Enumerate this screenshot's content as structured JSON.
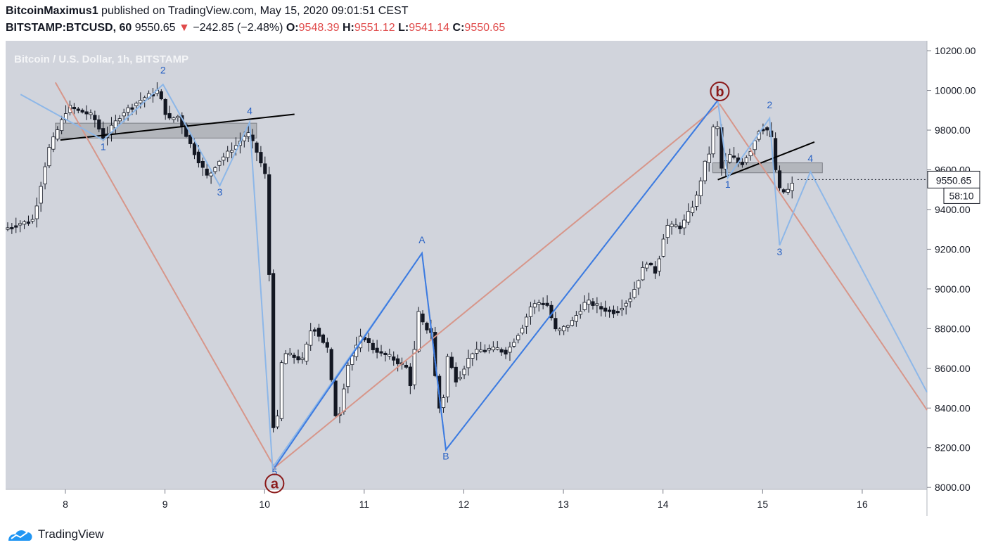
{
  "header": {
    "author": "BitcoinMaximus1",
    "published_text": " published on TradingView.com, May 15, 2020 09:01:51 CEST",
    "symbol": "BITSTAMP:BTCUSD, 60",
    "last": "9550.65",
    "change_arrow": "▼",
    "change": "−242.85 (−2.48%)",
    "open_label": "O:",
    "open": "9548.39",
    "high_label": "H:",
    "high": "9551.12",
    "low_label": "L:",
    "low": "9541.14",
    "close_label": "C:",
    "close": "9550.65"
  },
  "chart_title": "Bitcoin / U.S. Dollar, 1h, BITSTAMP",
  "price_badge": "9550.65",
  "countdown_badge": "58:10",
  "footer_brand": "TradingView",
  "colors": {
    "background": "#d1d4dc",
    "axis_bg": "#ffffff",
    "up_candle": "#ffffff",
    "down_candle": "#131722",
    "blue_wave": "#3d7be0",
    "light_blue_wave": "#8db7e8",
    "salmon_wave": "#d7968a",
    "wave_circle": "#8b1a1a",
    "label_blue": "#2962c4"
  },
  "chart_data": {
    "type": "candlestick",
    "title": "Bitcoin / U.S. Dollar, 1h, BITSTAMP",
    "x_ticks": [
      "8",
      "9",
      "10",
      "11",
      "12",
      "13",
      "14",
      "15",
      "16"
    ],
    "y_ticks": [
      "10200.00",
      "10000.00",
      "9800.00",
      "9600.00",
      "9400.00",
      "9200.00",
      "9000.00",
      "8800.00",
      "8600.00",
      "8400.00",
      "8200.00",
      "8000.00"
    ],
    "ylim": [
      7990,
      10250
    ],
    "xlim": [
      7.4,
      16.65
    ],
    "last_price": 9550.65,
    "path": [
      [
        7.4,
        9300
      ],
      [
        7.7,
        9350
      ],
      [
        7.85,
        9700
      ],
      [
        8.05,
        9920
      ],
      [
        8.3,
        9870
      ],
      [
        8.4,
        9760
      ],
      [
        8.6,
        9890
      ],
      [
        8.8,
        9960
      ],
      [
        8.95,
        10000
      ],
      [
        9.05,
        9850
      ],
      [
        9.15,
        9870
      ],
      [
        9.3,
        9700
      ],
      [
        9.45,
        9560
      ],
      [
        9.55,
        9640
      ],
      [
        9.75,
        9730
      ],
      [
        9.85,
        9790
      ],
      [
        9.95,
        9680
      ],
      [
        10.05,
        9540
      ],
      [
        10.08,
        8700
      ],
      [
        10.12,
        8150
      ],
      [
        10.2,
        8680
      ],
      [
        10.4,
        8640
      ],
      [
        10.5,
        8820
      ],
      [
        10.65,
        8700
      ],
      [
        10.75,
        8300
      ],
      [
        10.85,
        8610
      ],
      [
        11.0,
        8770
      ],
      [
        11.1,
        8700
      ],
      [
        11.3,
        8650
      ],
      [
        11.45,
        8600
      ],
      [
        11.5,
        8480
      ],
      [
        11.55,
        8900
      ],
      [
        11.62,
        8810
      ],
      [
        11.7,
        8780
      ],
      [
        11.75,
        8450
      ],
      [
        11.8,
        8350
      ],
      [
        11.85,
        8670
      ],
      [
        11.95,
        8530
      ],
      [
        12.1,
        8680
      ],
      [
        12.3,
        8700
      ],
      [
        12.45,
        8680
      ],
      [
        12.6,
        8800
      ],
      [
        12.7,
        8920
      ],
      [
        12.85,
        8930
      ],
      [
        12.95,
        8780
      ],
      [
        13.1,
        8830
      ],
      [
        13.25,
        8940
      ],
      [
        13.4,
        8900
      ],
      [
        13.55,
        8880
      ],
      [
        13.7,
        8960
      ],
      [
        13.85,
        9140
      ],
      [
        13.95,
        9080
      ],
      [
        14.05,
        9320
      ],
      [
        14.2,
        9310
      ],
      [
        14.35,
        9450
      ],
      [
        14.45,
        9650
      ],
      [
        14.5,
        9700
      ],
      [
        14.55,
        9920
      ],
      [
        14.6,
        9600
      ],
      [
        14.7,
        9680
      ],
      [
        14.8,
        9620
      ],
      [
        14.9,
        9700
      ],
      [
        15.0,
        9820
      ],
      [
        15.1,
        9790
      ],
      [
        15.15,
        9600
      ],
      [
        15.2,
        9480
      ],
      [
        15.28,
        9500
      ],
      [
        15.35,
        9550
      ]
    ],
    "highlight_zones": [
      {
        "x0": 7.9,
        "x1": 9.92,
        "y0": 9760,
        "y1": 9835
      },
      {
        "x0": 14.5,
        "x1": 15.6,
        "y0": 9585,
        "y1": 9635
      }
    ],
    "trendlines": [
      {
        "x0": 7.95,
        "y0": 9750,
        "x1": 10.3,
        "y1": 9880
      },
      {
        "x0": 14.55,
        "y0": 9550,
        "x1": 15.52,
        "y1": 9740
      }
    ],
    "salmon_wave": [
      [
        7.9,
        10040
      ],
      [
        10.1,
        8100
      ],
      [
        14.57,
        9930
      ],
      [
        16.65,
        8390
      ]
    ],
    "blue_wave": [
      [
        10.1,
        8100
      ],
      [
        11.58,
        9180
      ],
      [
        11.82,
        8190
      ],
      [
        14.55,
        9950
      ]
    ],
    "light_blue_wave": [
      [
        7.55,
        9980
      ],
      [
        8.38,
        9750
      ],
      [
        8.98,
        10030
      ],
      [
        9.55,
        9520
      ],
      [
        9.85,
        9840
      ],
      [
        10.08,
        8100
      ],
      [
        11.58,
        9180
      ],
      [
        11.82,
        8190
      ],
      [
        14.55,
        9950
      ],
      [
        14.65,
        9560
      ],
      [
        15.07,
        9860
      ],
      [
        15.17,
        9220
      ],
      [
        15.48,
        9590
      ],
      [
        16.65,
        8480
      ]
    ],
    "wave_labels": [
      {
        "text": "1",
        "x": 8.38,
        "y": 9700,
        "color": "label_blue"
      },
      {
        "text": "2",
        "x": 8.98,
        "y": 10085,
        "color": "label_blue"
      },
      {
        "text": "3",
        "x": 9.55,
        "y": 9470,
        "color": "label_blue"
      },
      {
        "text": "4",
        "x": 9.85,
        "y": 9880,
        "color": "label_blue"
      },
      {
        "text": "5",
        "x": 10.1,
        "y": 8060,
        "color": "label_blue"
      },
      {
        "text": "A",
        "x": 11.58,
        "y": 9230,
        "color": "label_blue"
      },
      {
        "text": "B",
        "x": 11.82,
        "y": 8140,
        "color": "label_blue"
      },
      {
        "text": "1",
        "x": 14.65,
        "y": 9510,
        "color": "label_blue"
      },
      {
        "text": "2",
        "x": 15.07,
        "y": 9910,
        "color": "label_blue"
      },
      {
        "text": "3",
        "x": 15.17,
        "y": 9170,
        "color": "label_blue"
      },
      {
        "text": "4",
        "x": 15.48,
        "y": 9640,
        "color": "label_blue"
      }
    ],
    "circle_labels": [
      {
        "text": "a",
        "x": 10.1,
        "y": 8020
      },
      {
        "text": "b",
        "x": 14.57,
        "y": 9995
      }
    ]
  }
}
